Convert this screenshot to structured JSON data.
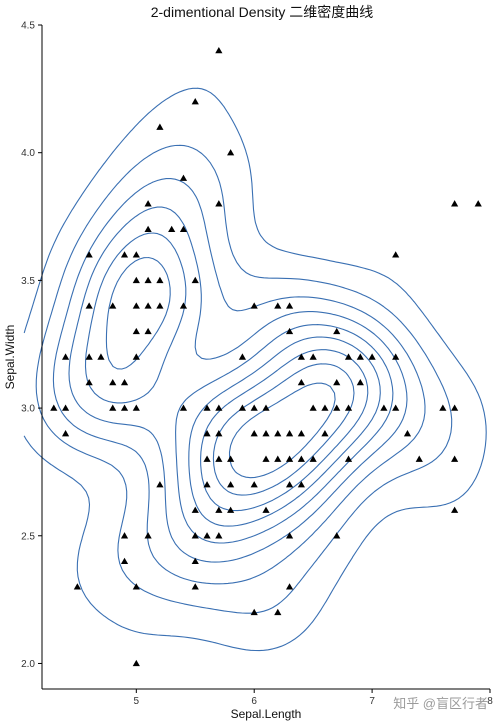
{
  "chart_data": {
    "type": "scatter",
    "title": "2-dimentional Density 二维密度曲线",
    "xlabel": "Sepal.Length",
    "ylabel": "Sepal.Width",
    "xlim": [
      4.2,
      8.0
    ],
    "ylim": [
      1.9,
      4.5
    ],
    "x_ticks": [
      5,
      6,
      7,
      8
    ],
    "x_tick_labels": [
      "5",
      "6",
      "7",
      "8"
    ],
    "y_ticks": [
      2.0,
      2.5,
      3.0,
      3.5,
      4.0,
      4.5
    ],
    "y_tick_labels": [
      "2.0",
      "2.5",
      "3.0",
      "3.5",
      "4.0",
      "4.5"
    ],
    "grid": false,
    "point_shape": "triangle",
    "point_color": "#000000",
    "contour_color": "#3a70b3",
    "points": [
      [
        5.1,
        3.5
      ],
      [
        4.9,
        3.0
      ],
      [
        4.7,
        3.2
      ],
      [
        4.6,
        3.1
      ],
      [
        5.0,
        3.6
      ],
      [
        5.4,
        3.9
      ],
      [
        4.6,
        3.4
      ],
      [
        5.0,
        3.4
      ],
      [
        4.4,
        2.9
      ],
      [
        4.9,
        3.1
      ],
      [
        5.4,
        3.7
      ],
      [
        4.8,
        3.4
      ],
      [
        4.8,
        3.0
      ],
      [
        4.3,
        3.0
      ],
      [
        5.8,
        4.0
      ],
      [
        5.7,
        4.4
      ],
      [
        5.4,
        3.9
      ],
      [
        5.1,
        3.5
      ],
      [
        5.7,
        3.8
      ],
      [
        5.1,
        3.8
      ],
      [
        5.4,
        3.4
      ],
      [
        5.1,
        3.7
      ],
      [
        4.6,
        3.6
      ],
      [
        5.1,
        3.3
      ],
      [
        4.8,
        3.4
      ],
      [
        5.0,
        3.0
      ],
      [
        5.0,
        3.4
      ],
      [
        5.2,
        3.5
      ],
      [
        5.2,
        3.4
      ],
      [
        4.7,
        3.2
      ],
      [
        4.8,
        3.1
      ],
      [
        5.4,
        3.4
      ],
      [
        5.2,
        4.1
      ],
      [
        5.5,
        4.2
      ],
      [
        4.9,
        3.1
      ],
      [
        5.0,
        3.2
      ],
      [
        5.5,
        3.5
      ],
      [
        4.9,
        3.6
      ],
      [
        4.4,
        3.0
      ],
      [
        5.1,
        3.4
      ],
      [
        5.0,
        3.5
      ],
      [
        4.5,
        2.3
      ],
      [
        4.4,
        3.2
      ],
      [
        5.0,
        3.5
      ],
      [
        5.1,
        3.8
      ],
      [
        4.8,
        3.0
      ],
      [
        5.1,
        3.8
      ],
      [
        4.6,
        3.2
      ],
      [
        5.3,
        3.7
      ],
      [
        5.0,
        3.3
      ],
      [
        7.0,
        3.2
      ],
      [
        6.4,
        3.2
      ],
      [
        6.9,
        3.1
      ],
      [
        5.5,
        2.3
      ],
      [
        6.5,
        2.8
      ],
      [
        5.7,
        2.8
      ],
      [
        6.3,
        3.3
      ],
      [
        4.9,
        2.4
      ],
      [
        6.6,
        2.9
      ],
      [
        5.2,
        2.7
      ],
      [
        5.0,
        2.0
      ],
      [
        5.9,
        3.0
      ],
      [
        6.0,
        2.2
      ],
      [
        6.1,
        2.9
      ],
      [
        5.6,
        2.9
      ],
      [
        6.7,
        3.1
      ],
      [
        5.6,
        3.0
      ],
      [
        5.8,
        2.7
      ],
      [
        6.2,
        2.2
      ],
      [
        5.6,
        2.5
      ],
      [
        5.9,
        3.2
      ],
      [
        6.1,
        2.8
      ],
      [
        6.3,
        2.5
      ],
      [
        6.1,
        2.8
      ],
      [
        6.4,
        2.9
      ],
      [
        6.6,
        3.0
      ],
      [
        6.8,
        2.8
      ],
      [
        6.7,
        3.0
      ],
      [
        6.0,
        2.9
      ],
      [
        5.7,
        2.6
      ],
      [
        5.5,
        2.4
      ],
      [
        5.5,
        2.4
      ],
      [
        5.8,
        2.7
      ],
      [
        6.0,
        2.7
      ],
      [
        5.4,
        3.0
      ],
      [
        6.0,
        3.4
      ],
      [
        6.7,
        3.1
      ],
      [
        6.3,
        2.3
      ],
      [
        5.6,
        3.0
      ],
      [
        5.5,
        2.5
      ],
      [
        5.5,
        2.6
      ],
      [
        6.1,
        3.0
      ],
      [
        5.8,
        2.6
      ],
      [
        5.0,
        2.3
      ],
      [
        5.6,
        2.7
      ],
      [
        5.7,
        3.0
      ],
      [
        5.7,
        2.9
      ],
      [
        6.2,
        2.9
      ],
      [
        5.1,
        2.5
      ],
      [
        5.7,
        2.8
      ],
      [
        6.3,
        3.3
      ],
      [
        5.8,
        2.7
      ],
      [
        7.1,
        3.0
      ],
      [
        6.3,
        2.9
      ],
      [
        6.5,
        3.0
      ],
      [
        7.6,
        3.0
      ],
      [
        4.9,
        2.5
      ],
      [
        7.3,
        2.9
      ],
      [
        6.7,
        2.5
      ],
      [
        7.2,
        3.6
      ],
      [
        6.5,
        3.2
      ],
      [
        6.4,
        2.7
      ],
      [
        6.8,
        3.0
      ],
      [
        5.7,
        2.5
      ],
      [
        5.8,
        2.8
      ],
      [
        6.4,
        3.2
      ],
      [
        6.5,
        3.0
      ],
      [
        7.7,
        3.8
      ],
      [
        7.7,
        2.6
      ],
      [
        6.0,
        2.2
      ],
      [
        6.9,
        3.2
      ],
      [
        5.6,
        2.8
      ],
      [
        7.7,
        2.8
      ],
      [
        6.3,
        2.7
      ],
      [
        6.7,
        3.3
      ],
      [
        7.2,
        3.2
      ],
      [
        6.2,
        2.8
      ],
      [
        6.1,
        3.0
      ],
      [
        6.4,
        2.8
      ],
      [
        7.2,
        3.0
      ],
      [
        7.4,
        2.8
      ],
      [
        7.9,
        3.8
      ],
      [
        6.4,
        2.8
      ],
      [
        6.3,
        2.8
      ],
      [
        6.1,
        2.6
      ],
      [
        7.7,
        3.0
      ],
      [
        6.3,
        3.4
      ],
      [
        6.4,
        3.1
      ],
      [
        6.0,
        3.0
      ],
      [
        6.9,
        3.1
      ],
      [
        6.7,
        3.1
      ],
      [
        6.9,
        3.1
      ],
      [
        5.8,
        2.7
      ],
      [
        6.8,
        3.2
      ],
      [
        6.7,
        3.3
      ],
      [
        6.7,
        3.0
      ],
      [
        6.3,
        2.5
      ],
      [
        6.5,
        3.0
      ],
      [
        6.2,
        3.4
      ],
      [
        5.9,
        3.0
      ]
    ],
    "contour_levels": 9,
    "watermark": "知乎 @盲区行者"
  }
}
